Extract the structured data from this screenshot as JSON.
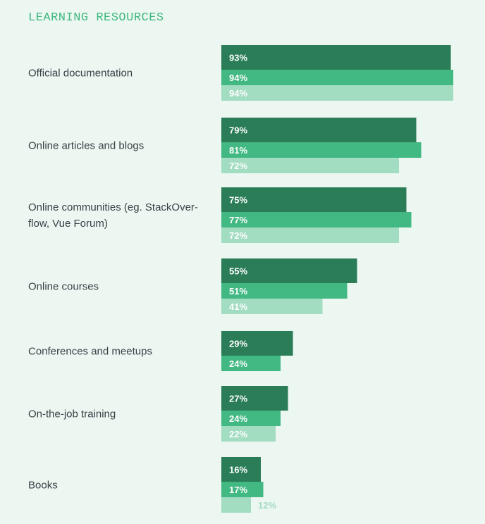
{
  "chart_data": {
    "type": "bar",
    "orientation": "horizontal",
    "title": "LEARNING RESOURCES",
    "xlabel": "",
    "ylabel": "",
    "xlim": [
      0,
      100
    ],
    "grid": false,
    "legend": "none",
    "categories": [
      [
        "Official documentation"
      ],
      [
        "Online articles and blogs"
      ],
      [
        "Online communities (eg. StackOver-",
        "flow, Vue Forum)"
      ],
      [
        "Online courses"
      ],
      [
        "Conferences and meetups"
      ],
      [
        "On-the-job training"
      ],
      [
        "Books"
      ]
    ],
    "series": [
      {
        "name": "Series 1",
        "color": "#2a7d57",
        "values": [
          93,
          79,
          75,
          55,
          29,
          27,
          16
        ]
      },
      {
        "name": "Series 2",
        "color": "#42b883",
        "values": [
          94,
          81,
          77,
          51,
          24,
          24,
          17
        ]
      },
      {
        "name": "Series 3",
        "color": "#a2dcc1",
        "values": [
          94,
          72,
          72,
          41,
          null,
          22,
          12
        ]
      }
    ],
    "value_suffix": "%",
    "outside_label_color": "#a2dcc1"
  }
}
